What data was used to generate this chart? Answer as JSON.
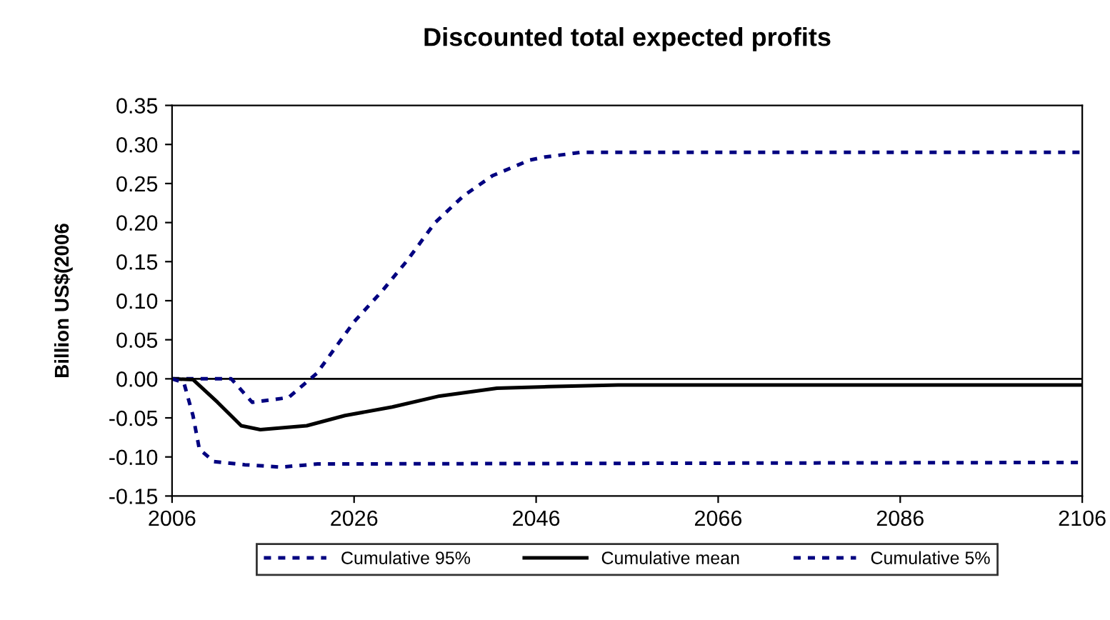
{
  "chart_data": {
    "type": "line",
    "title": "Discounted total expected profits",
    "ylabel": "Billion US$(2006",
    "xlim": [
      2006,
      2106
    ],
    "xticks": [
      2006,
      2026,
      2046,
      2066,
      2086,
      2106
    ],
    "ylim": [
      -0.15,
      0.35
    ],
    "yticks": [
      {
        "value": 0.35,
        "label": "0.35"
      },
      {
        "value": 0.3,
        "label": "0.30"
      },
      {
        "value": 0.25,
        "label": "0.25"
      },
      {
        "value": 0.2,
        "label": "0.20"
      },
      {
        "value": 0.15,
        "label": "0.15"
      },
      {
        "value": 0.1,
        "label": "0.10"
      },
      {
        "value": 0.05,
        "label": "0.05"
      },
      {
        "value": 0,
        "label": "0.00"
      },
      {
        "value": -0.05,
        "label": "-0.05"
      },
      {
        "value": -0.1,
        "label": "-0.10"
      },
      {
        "value": -0.15,
        "label": "-0.15"
      }
    ],
    "ref_lines": [
      {
        "axis": "y",
        "value": 0,
        "color": "#000000"
      }
    ],
    "grid": false,
    "legend": "bottom",
    "series": [
      {
        "name": "Cumulative 95%",
        "color": "#000080",
        "line_style": "dashed",
        "x": [
          2006,
          2012.5,
          2014.8,
          2018.8,
          2021.9,
          2026,
          2029.2,
          2031.8,
          2034.9,
          2038,
          2041.2,
          2045.3,
          2047,
          2051,
          2106
        ],
        "values": [
          0,
          0,
          -0.03,
          -0.024,
          0.007,
          0.073,
          0.114,
          0.151,
          0.2,
          0.234,
          0.26,
          0.28,
          0.284,
          0.29,
          0.29
        ]
      },
      {
        "name": "Cumulative mean",
        "color": "#000000",
        "line_style": "solid",
        "x": [
          2006,
          2008.3,
          2011,
          2013.6,
          2015.7,
          2020.8,
          2025,
          2030.2,
          2035.4,
          2041.7,
          2047.4,
          2055,
          2106
        ],
        "values": [
          0,
          -0.001,
          -0.03,
          -0.06,
          -0.065,
          -0.06,
          -0.047,
          -0.036,
          -0.022,
          -0.012,
          -0.01,
          -0.008,
          -0.008
        ]
      },
      {
        "name": "Cumulative 5%",
        "color": "#000080",
        "line_style": "dashed",
        "x": [
          2006,
          2007.3,
          2008.3,
          2009,
          2010.6,
          2014,
          2018,
          2022,
          2106
        ],
        "values": [
          0,
          -0.005,
          -0.047,
          -0.09,
          -0.106,
          -0.11,
          -0.113,
          -0.109,
          -0.107
        ]
      }
    ]
  }
}
